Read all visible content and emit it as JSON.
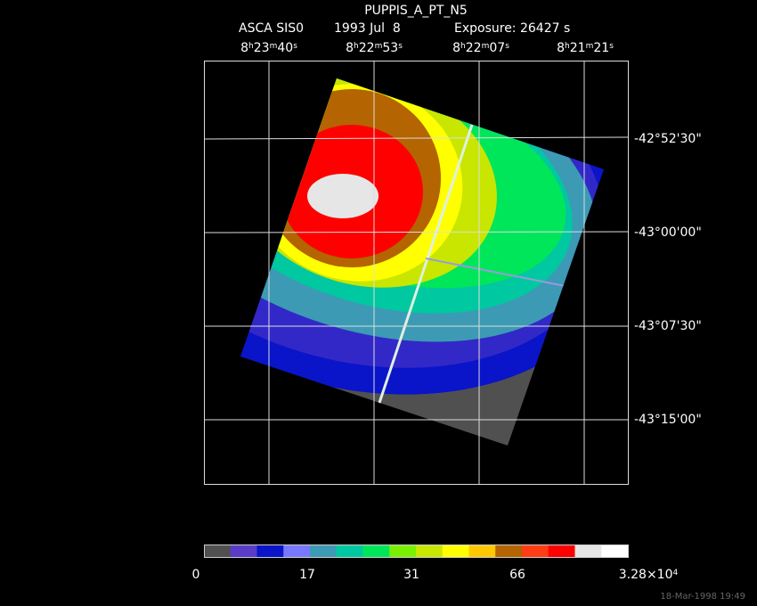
{
  "title": "PUPPIS_A_PT_N5",
  "subtitle": {
    "instrument": "ASCA SIS0",
    "date": "1993 Jul  8",
    "exposure": "Exposure: 26427 s"
  },
  "ra_labels": [
    [
      "8",
      "h",
      "23",
      "m",
      "40",
      "s"
    ],
    [
      "8",
      "h",
      "22",
      "m",
      "53",
      "s"
    ],
    [
      "8",
      "h",
      "22",
      "m",
      "07",
      "s"
    ],
    [
      "8",
      "h",
      "21",
      "m",
      "21",
      "s"
    ]
  ],
  "dec_labels": [
    "-42°52'30\"",
    "-43°00'00\"",
    "-43°07'30\"",
    "-43°15'00\""
  ],
  "colorbar": {
    "colors": [
      "#505050",
      "#5a3cc8",
      "#0a14c8",
      "#7878ff",
      "#3c9ab4",
      "#00c8a0",
      "#00e65a",
      "#78f000",
      "#c8e600",
      "#ffff00",
      "#ffc800",
      "#b46400",
      "#ff3c14",
      "#ff0000",
      "#e6e6e6",
      "#ffffff"
    ],
    "labels": [
      [
        "0"
      ],
      [
        "17"
      ],
      [
        "31"
      ],
      [
        "66"
      ],
      [
        "3.28×10",
        "4"
      ]
    ]
  },
  "timestamp": "18-Mar-1998 19:49"
}
